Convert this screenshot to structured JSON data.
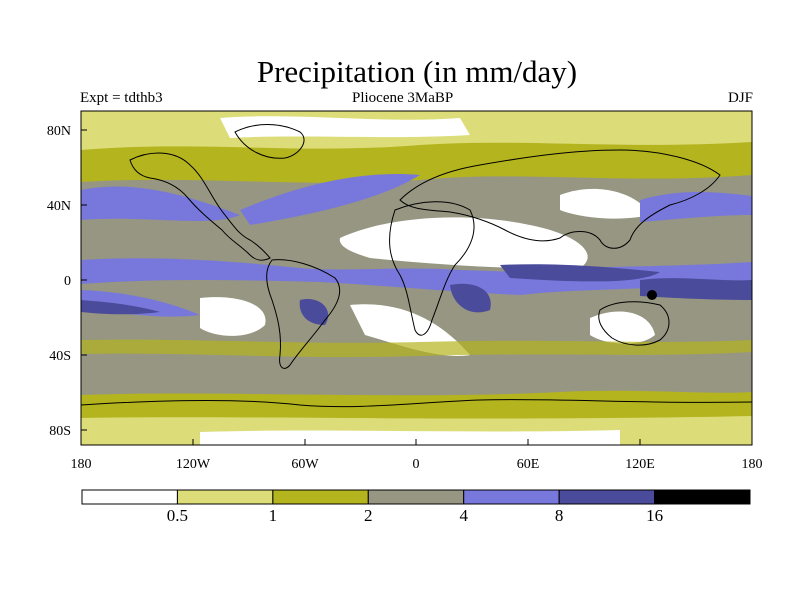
{
  "title": "Precipitation (in mm/day)",
  "subtitle_left": "Expt = tdthb3",
  "subtitle_center": "Pliocene   3MaBP",
  "subtitle_right": "DJF",
  "lat_labels": [
    "80N",
    "40N",
    "0",
    "40S",
    "80S"
  ],
  "lon_labels": [
    "180",
    "120W",
    "60W",
    "0",
    "60E",
    "120E",
    "180"
  ],
  "colorbar": {
    "colors": [
      "#ffffff",
      "#dcdc78",
      "#b4b41e",
      "#969682",
      "#7878dc",
      "#4b4b9b",
      "#000000"
    ],
    "labels": [
      "0.5",
      "1",
      "2",
      "4",
      "8",
      "16"
    ]
  }
}
